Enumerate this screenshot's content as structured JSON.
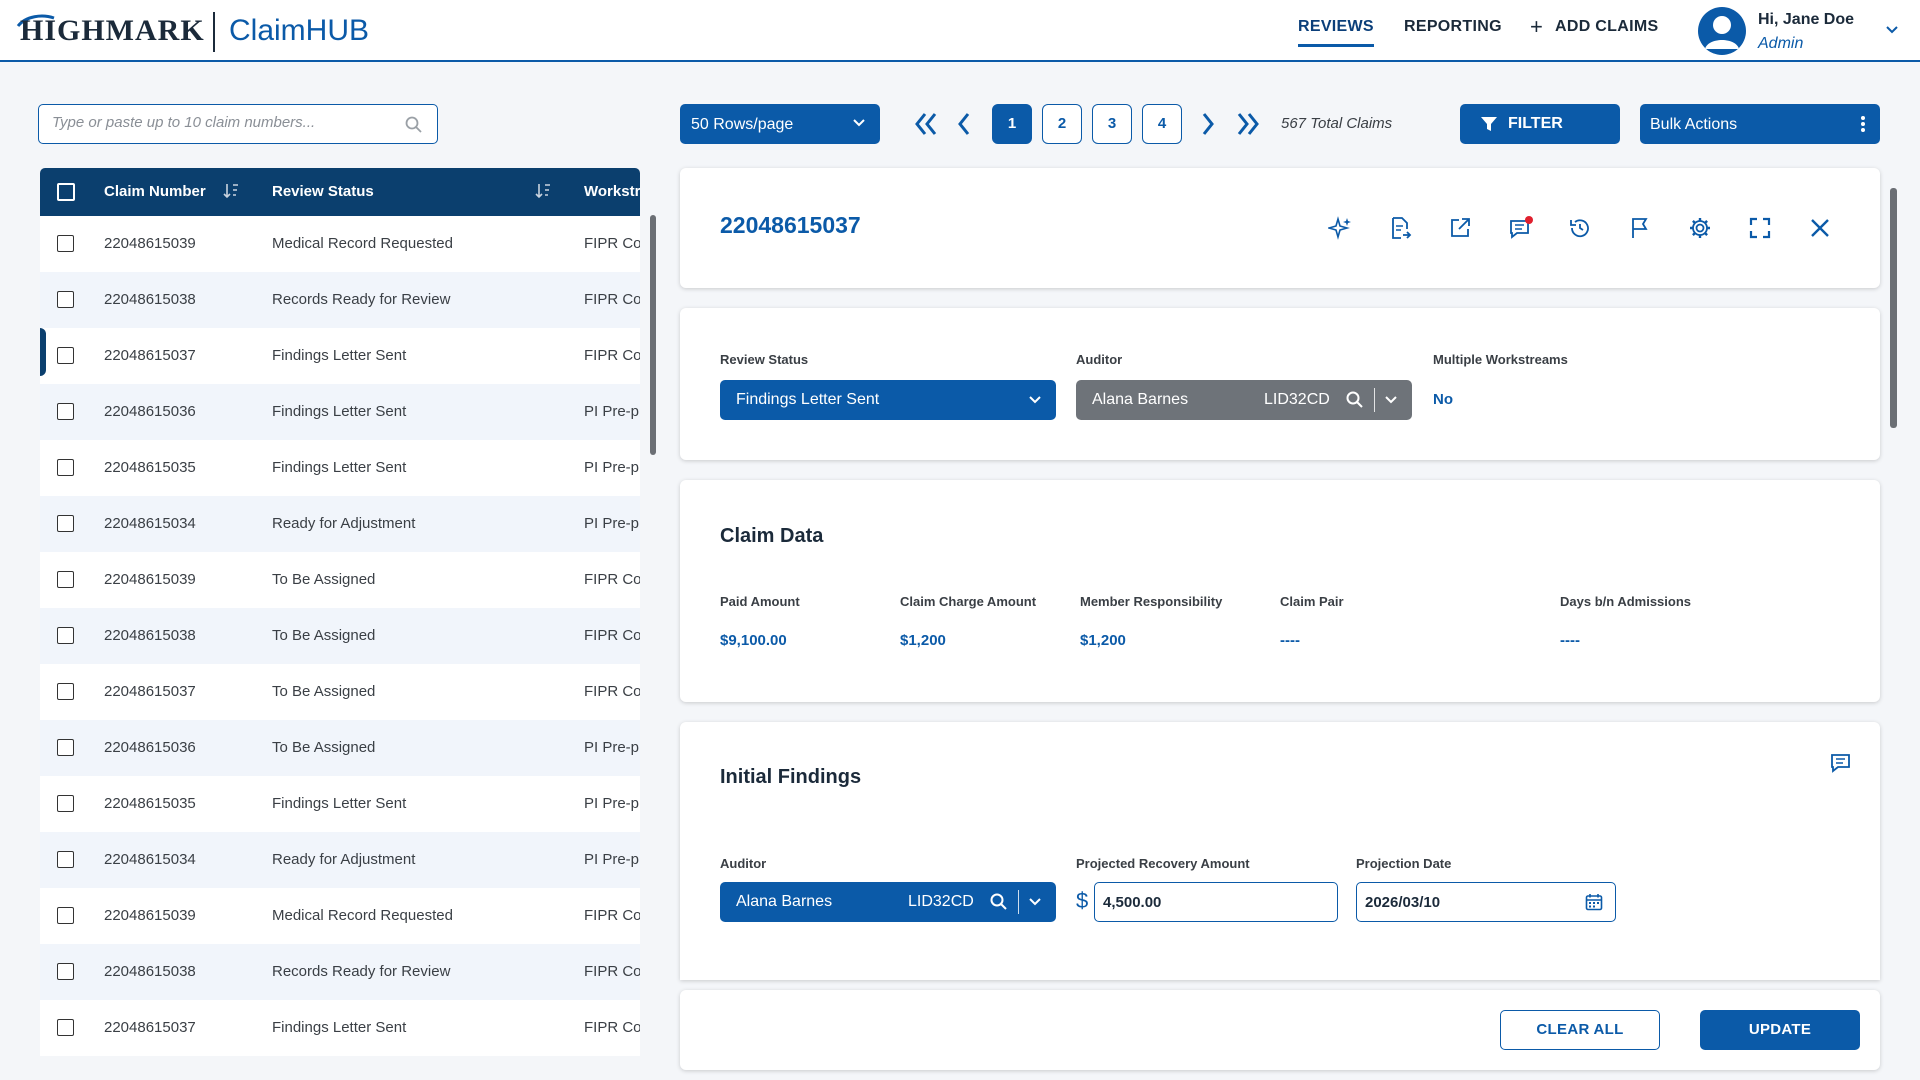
{
  "header": {
    "brand": "HIGHMARK",
    "app_name": "ClaimHUB",
    "nav": [
      {
        "label": "REVIEWS",
        "active": true
      },
      {
        "label": "REPORTING",
        "active": false
      },
      {
        "label": "ADD CLAIMS",
        "active": false
      }
    ],
    "user": {
      "greeting": "Hi, Jane Doe",
      "role": "Admin"
    }
  },
  "search": {
    "placeholder": "Type or paste up to 10 claim numbers...",
    "value": ""
  },
  "table": {
    "columns": [
      "Claim Number",
      "Review Status",
      "Workstream"
    ],
    "rows": [
      {
        "claim": "22048615039",
        "status": "Medical Record Requested",
        "workstream": "FIPR Co"
      },
      {
        "claim": "22048615038",
        "status": "Records Ready for Review",
        "workstream": "FIPR Co"
      },
      {
        "claim": "22048615037",
        "status": "Findings Letter Sent",
        "workstream": "FIPR Co"
      },
      {
        "claim": "22048615036",
        "status": "Findings Letter Sent",
        "workstream": "PI Pre-p"
      },
      {
        "claim": "22048615035",
        "status": "Findings Letter Sent",
        "workstream": "PI Pre-p"
      },
      {
        "claim": "22048615034",
        "status": "Ready for Adjustment",
        "workstream": "PI Pre-p"
      },
      {
        "claim": "22048615039",
        "status": "To Be Assigned",
        "workstream": "FIPR Co"
      },
      {
        "claim": "22048615038",
        "status": "To Be Assigned",
        "workstream": "FIPR Co"
      },
      {
        "claim": "22048615037",
        "status": "To Be Assigned",
        "workstream": "FIPR Co"
      },
      {
        "claim": "22048615036",
        "status": "To Be Assigned",
        "workstream": "PI Pre-p"
      },
      {
        "claim": "22048615035",
        "status": "Findings Letter Sent",
        "workstream": "PI Pre-p"
      },
      {
        "claim": "22048615034",
        "status": "Ready for Adjustment",
        "workstream": "PI Pre-p"
      },
      {
        "claim": "22048615039",
        "status": "Medical Record Requested",
        "workstream": "FIPR Co"
      },
      {
        "claim": "22048615038",
        "status": "Records Ready for Review",
        "workstream": "FIPR Co"
      },
      {
        "claim": "22048615037",
        "status": "Findings Letter Sent",
        "workstream": "FIPR Co"
      }
    ]
  },
  "toolbar": {
    "rows_per_page": "50 Rows/page",
    "pages": [
      "1",
      "2",
      "3",
      "4"
    ],
    "current_page": "1",
    "total_claims": "567 Total Claims",
    "filter_label": "FILTER",
    "bulk_actions_label": "Bulk Actions"
  },
  "detail": {
    "claim_number": "22048615037",
    "review_status": {
      "label": "Review Status",
      "value": "Findings Letter Sent"
    },
    "auditor": {
      "label": "Auditor",
      "name": "Alana Barnes",
      "code": "LID32CD"
    },
    "multiple_workstreams": {
      "label": "Multiple Workstreams",
      "value": "No"
    },
    "claim_data": {
      "heading": "Claim Data",
      "fields": [
        {
          "label": "Paid Amount",
          "value": "$9,100.00"
        },
        {
          "label": "Claim Charge Amount",
          "value": "$1,200"
        },
        {
          "label": "Member Responsibility",
          "value": "$1,200"
        },
        {
          "label": "Claim Pair",
          "value": "----"
        },
        {
          "label": "Days b/n Admissions",
          "value": "----"
        }
      ]
    },
    "initial_findings": {
      "heading": "Initial Findings",
      "auditor_label": "Auditor",
      "auditor_name": "Alana Barnes",
      "auditor_code": "LID32CD",
      "projected_recovery_label": "Projected Recovery Amount",
      "currency_symbol": "$",
      "projected_recovery_value": "4,500.00",
      "projection_date_label": "Projection Date",
      "projection_date_value": "2026/03/10"
    }
  },
  "actions": {
    "clear_all": "CLEAR ALL",
    "update": "UPDATE"
  },
  "colors": {
    "primary": "#0b5aa8",
    "header_dark": "#0b3f6e",
    "notification": "#e0202e"
  }
}
